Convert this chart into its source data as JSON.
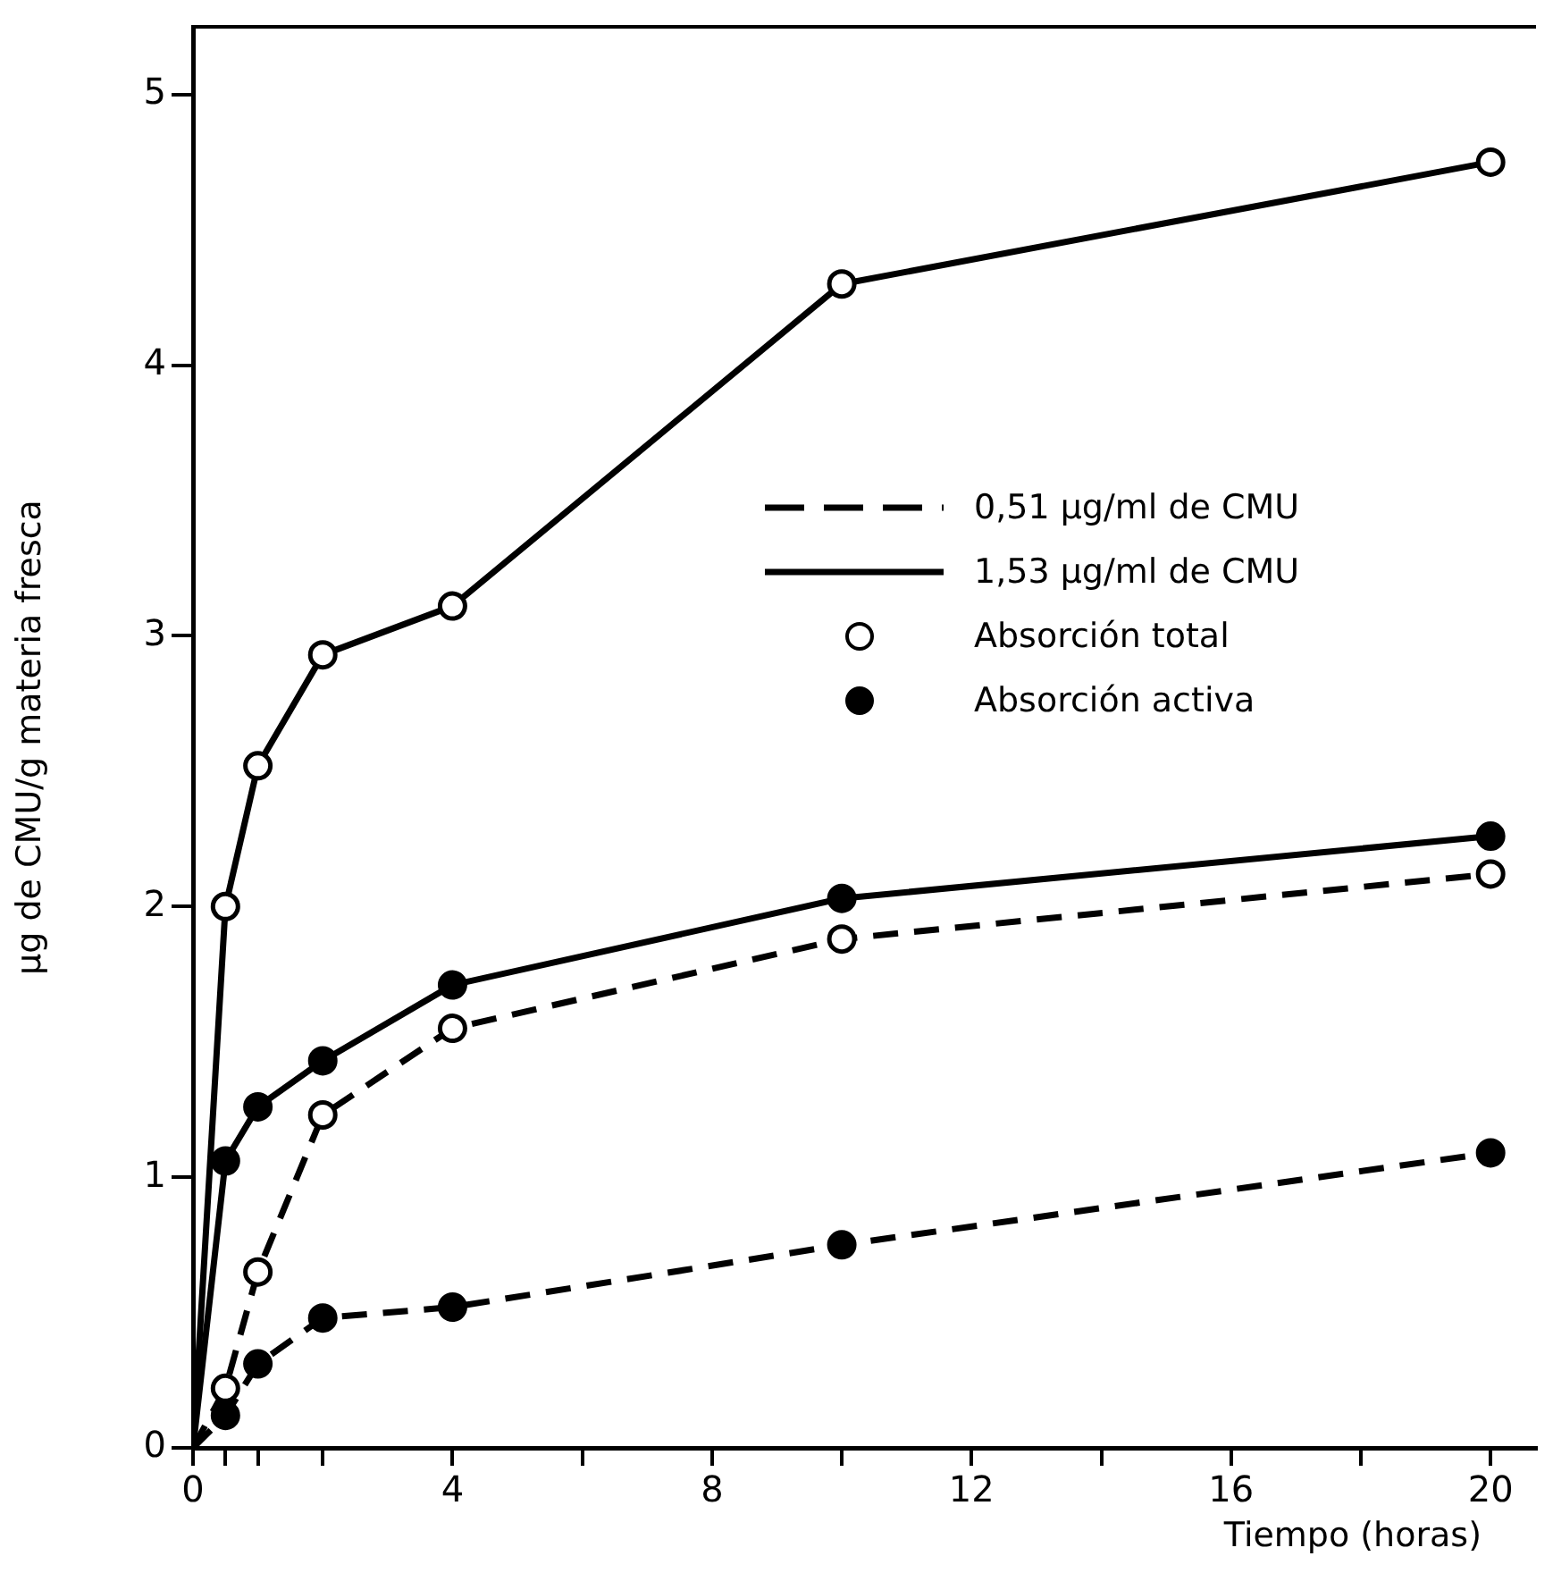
{
  "chart_data": {
    "type": "line",
    "xlabel": "Tiempo (horas)",
    "ylabel": "μg de CMU/g materia fresca",
    "xlim": [
      0,
      20.7
    ],
    "ylim": [
      0,
      5.25
    ],
    "xticks": [
      0,
      {
        "value": 0.5,
        "label": null
      },
      {
        "value": 1,
        "label": null
      },
      {
        "value": 2,
        "label": null
      },
      4,
      {
        "value": 6,
        "label": null
      },
      8,
      {
        "value": 10,
        "label": null
      },
      12,
      {
        "value": 14,
        "label": null
      },
      16,
      {
        "value": 18,
        "label": null
      },
      20
    ],
    "yticks": [
      0,
      1,
      2,
      3,
      4,
      5
    ],
    "grid": false,
    "legend": false,
    "marker": "circle",
    "annotations": [
      "0,51 μg/ml de CMU",
      "1,53 μg/ml de CMU",
      "Absorción total",
      "Absorción activa"
    ],
    "series": [
      {
        "color": "#000000",
        "line_style": "solid",
        "x": [
          0,
          0.5,
          1,
          2,
          4,
          10,
          20
        ],
        "values": [
          0,
          2.0,
          2.52,
          2.93,
          3.11,
          4.3,
          4.75
        ]
      },
      {
        "color": "#000000",
        "line_style": "solid",
        "x": [
          0,
          0.5,
          1,
          2,
          4,
          10,
          20
        ],
        "values": [
          0,
          1.06,
          1.26,
          1.43,
          1.71,
          2.03,
          2.26
        ]
      },
      {
        "color": "#000000",
        "line_style": "dashed",
        "x": [
          0,
          0.5,
          1,
          2,
          4,
          10,
          20
        ],
        "values": [
          0,
          0.22,
          0.65,
          1.23,
          1.55,
          1.88,
          2.12
        ]
      },
      {
        "color": "#000000",
        "line_style": "dashed",
        "x": [
          0,
          0.5,
          1,
          2,
          4,
          10,
          20
        ],
        "values": [
          0,
          0.12,
          0.31,
          0.48,
          0.52,
          0.75,
          1.09
        ]
      }
    ]
  }
}
